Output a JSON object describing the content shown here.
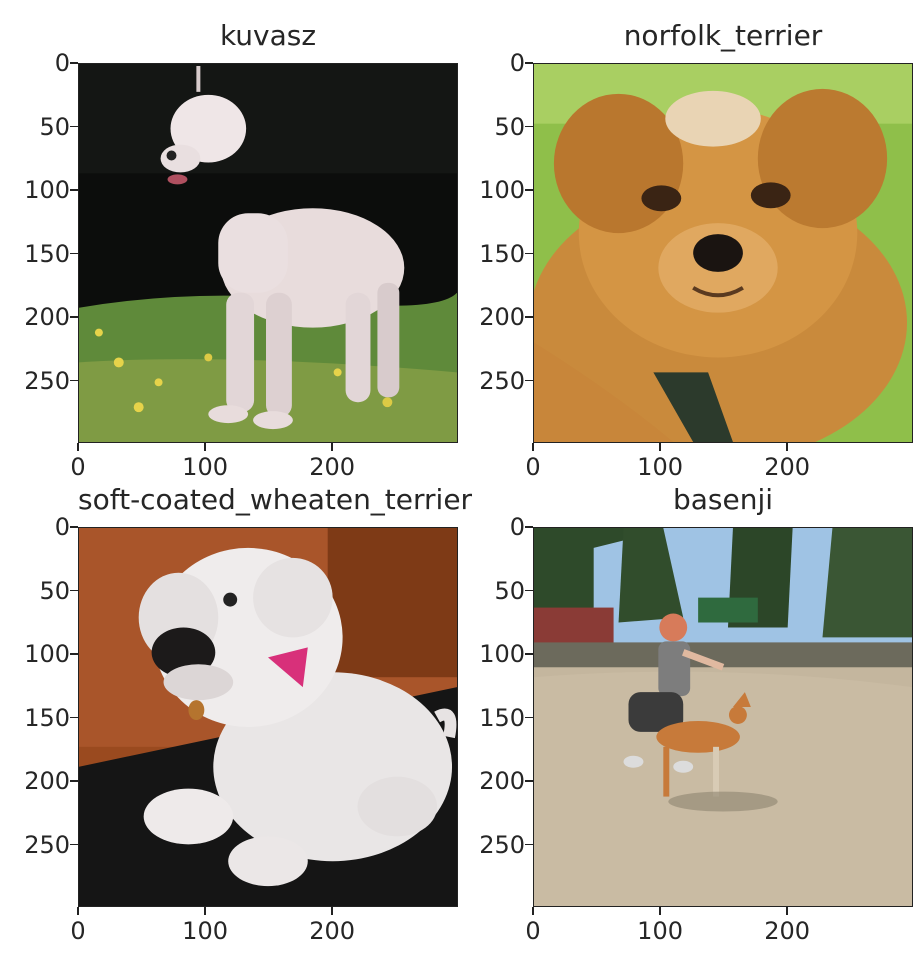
{
  "figure": {
    "panels": [
      {
        "title": "kuvasz",
        "scene": "white-dog-grass",
        "icon": "dog-image"
      },
      {
        "title": "norfolk_terrier",
        "scene": "terrier-face",
        "icon": "dog-image"
      },
      {
        "title": "soft-coated_wheaten_terrier",
        "scene": "white-dog-indoor",
        "icon": "dog-image"
      },
      {
        "title": "basenji",
        "scene": "handler-and-dog-outdoors",
        "icon": "dog-image"
      }
    ],
    "y_ticks": [
      "0",
      "50",
      "100",
      "150",
      "200",
      "250"
    ],
    "y_tick_values": [
      0,
      50,
      100,
      150,
      200,
      250
    ],
    "x_ticks": [
      "0",
      "100",
      "200"
    ],
    "x_tick_values": [
      0,
      100,
      200
    ],
    "axis_max": 299
  }
}
